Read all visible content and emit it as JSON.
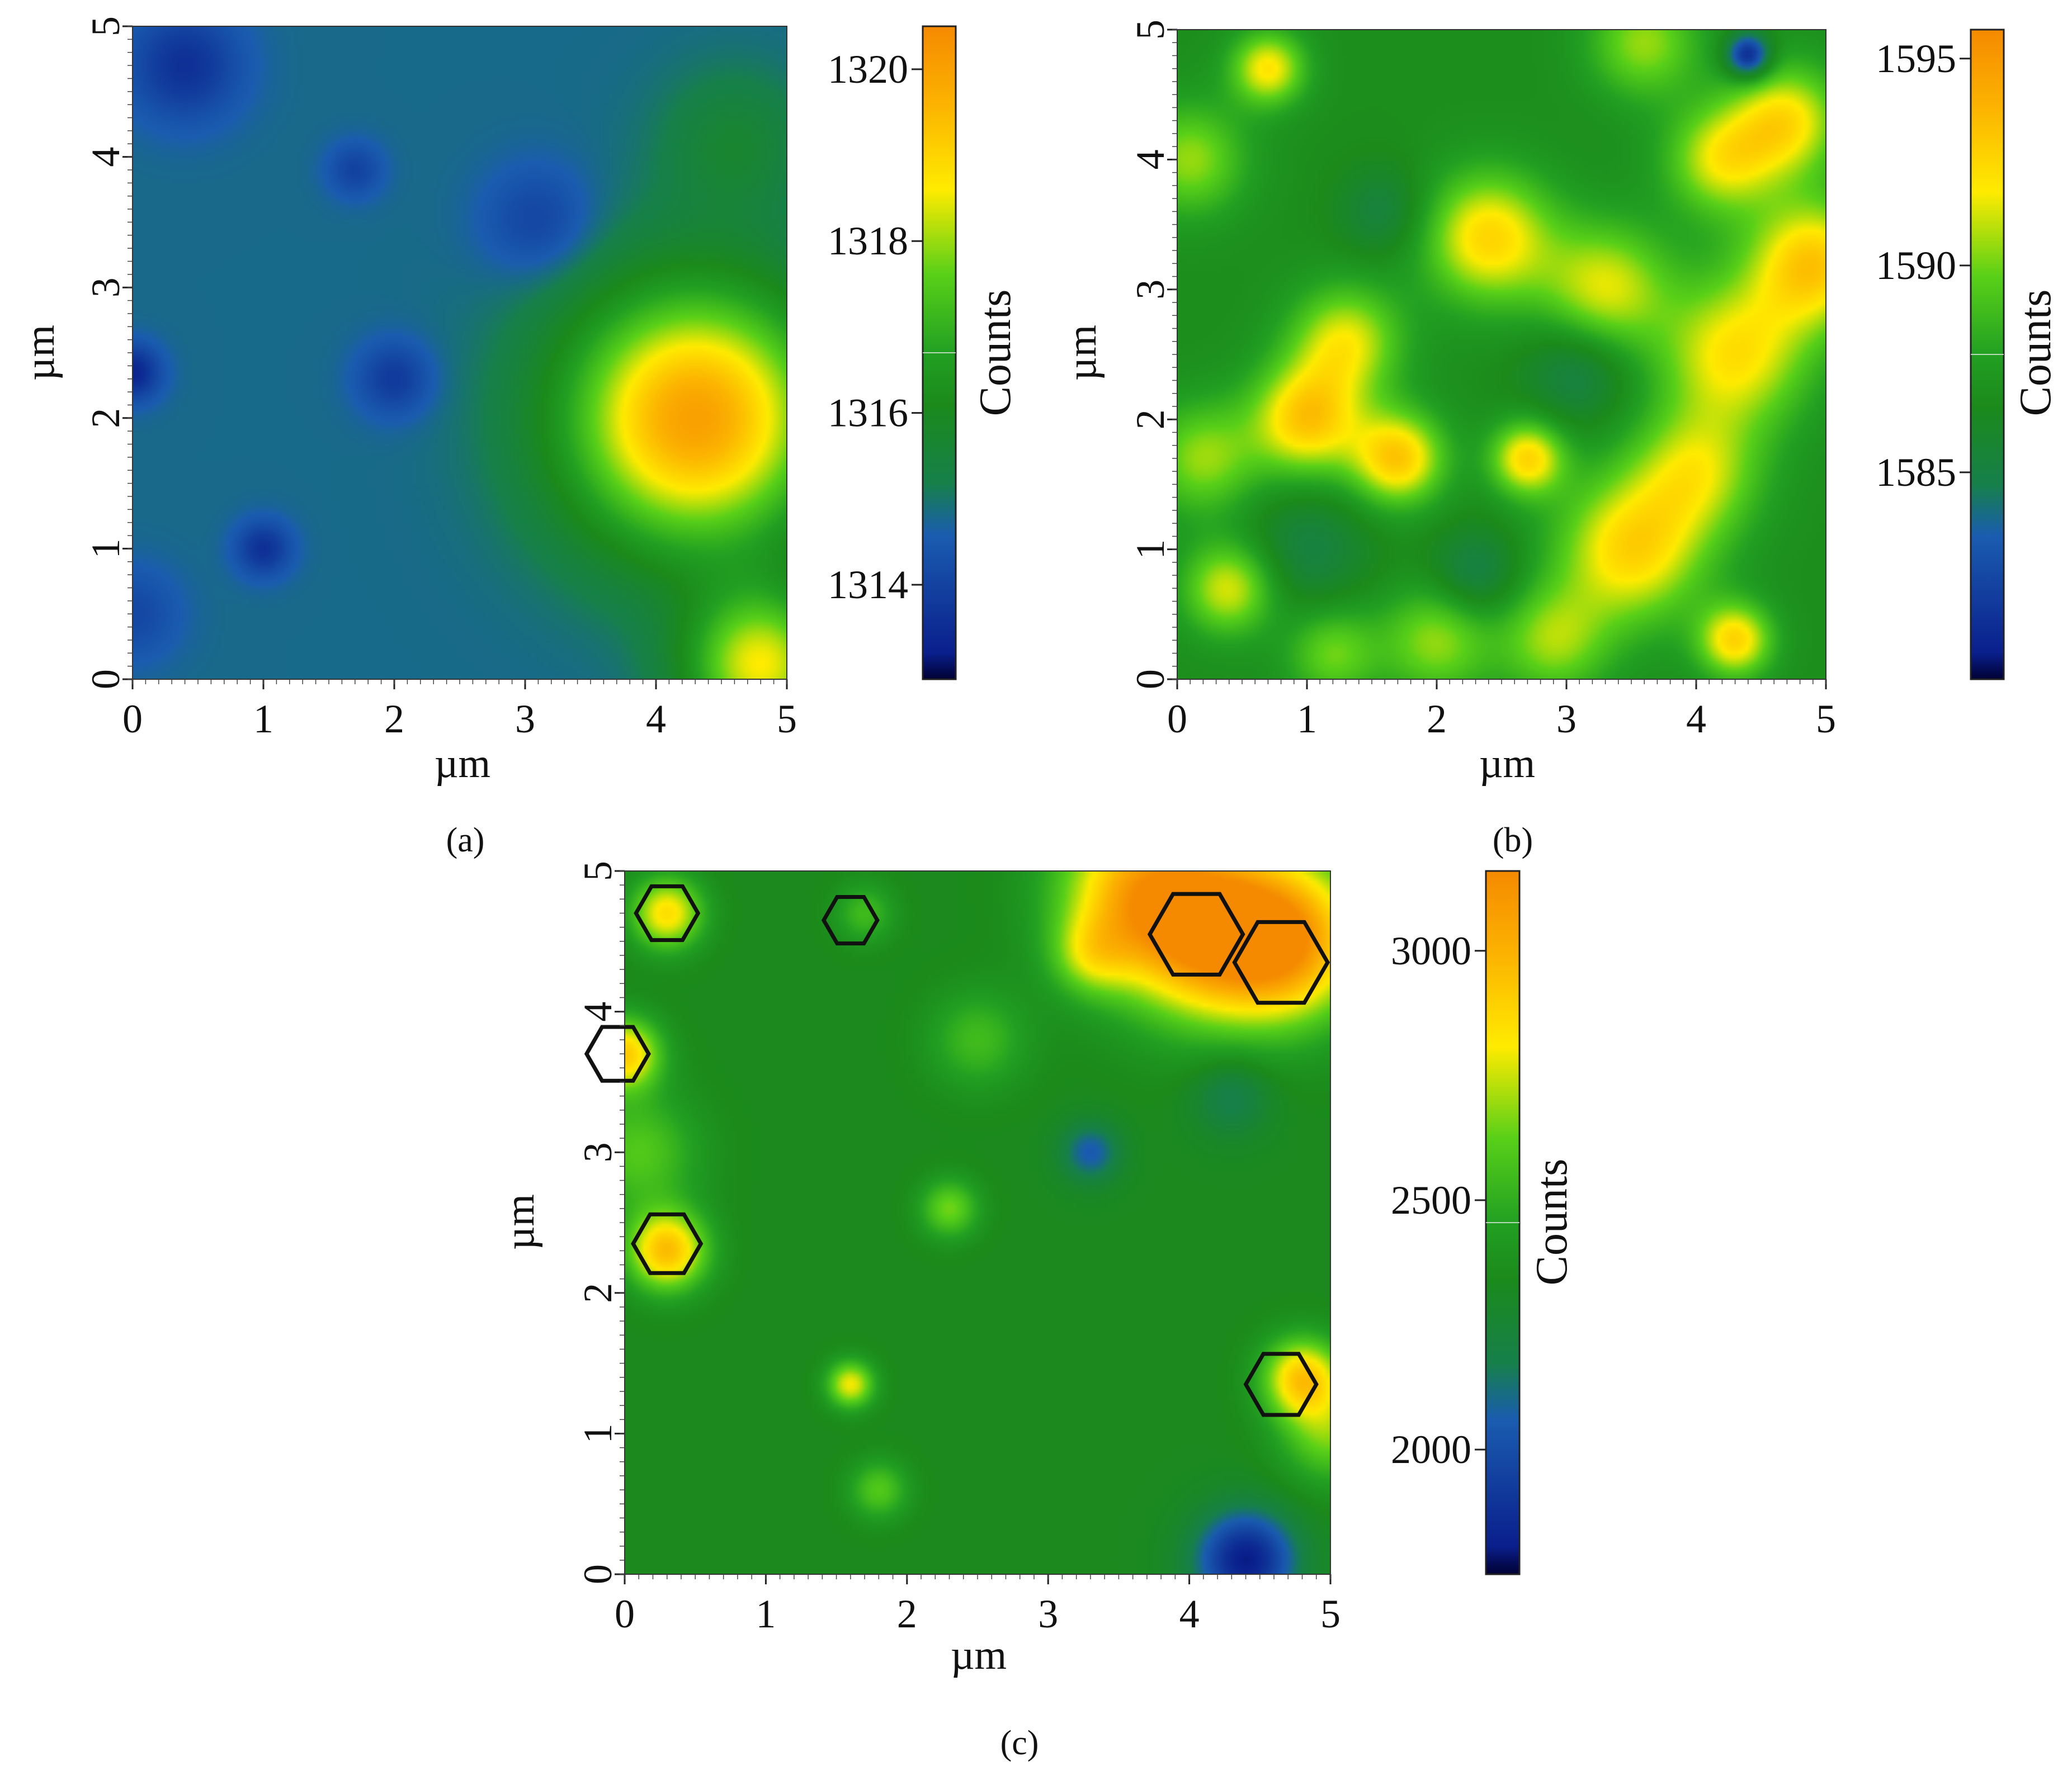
{
  "colors": {
    "low": "#0a1f8c",
    "mid": "#1b8a1b",
    "high": "#ffeb00",
    "peak": "#f58a00",
    "outline": "#111111"
  },
  "chart_data": [
    {
      "type": "heatmap",
      "panel_label": "(a)",
      "xlabel": "µm",
      "ylabel": "µm",
      "colorbar_label": "Counts",
      "xlim": [
        0,
        5
      ],
      "ylim": [
        0,
        5
      ],
      "x_ticks": [
        "0",
        "1",
        "2",
        "3",
        "4",
        "5"
      ],
      "y_ticks": [
        "0",
        "1",
        "2",
        "3",
        "4",
        "5"
      ],
      "colorbar_range": [
        1312.9,
        1320.5
      ],
      "colorbar_ticks": [
        {
          "value": 1314,
          "label": "1314"
        },
        {
          "value": 1316,
          "label": "1316"
        },
        {
          "value": 1318,
          "label": "1318"
        },
        {
          "value": 1320,
          "label": "1320"
        }
      ],
      "base_value": 1314.8,
      "features": [
        {
          "x": 4.3,
          "y": 2.0,
          "value": 1320.0,
          "spread": 0.7
        },
        {
          "x": 4.8,
          "y": 0.1,
          "value": 1318.5,
          "spread": 0.4
        },
        {
          "x": 4.6,
          "y": 4.1,
          "value": 1315.6,
          "spread": 0.4
        },
        {
          "x": 0.4,
          "y": 4.7,
          "value": 1313.6,
          "spread": 0.3
        },
        {
          "x": 0.0,
          "y": 2.35,
          "value": 1313.3,
          "spread": 0.15
        },
        {
          "x": 1.0,
          "y": 1.0,
          "value": 1313.6,
          "spread": 0.15
        },
        {
          "x": 2.0,
          "y": 2.3,
          "value": 1313.8,
          "spread": 0.2
        },
        {
          "x": 3.1,
          "y": 3.5,
          "value": 1314.0,
          "spread": 0.3
        },
        {
          "x": 1.7,
          "y": 3.9,
          "value": 1314.0,
          "spread": 0.15
        },
        {
          "x": 0.0,
          "y": 0.5,
          "value": 1314.1,
          "spread": 0.25
        }
      ]
    },
    {
      "type": "heatmap",
      "panel_label": "(b)",
      "xlabel": "µm",
      "ylabel": "µm",
      "colorbar_label": "Counts",
      "xlim": [
        0,
        5
      ],
      "ylim": [
        0,
        5
      ],
      "x_ticks": [
        "0",
        "1",
        "2",
        "3",
        "4",
        "5"
      ],
      "y_ticks": [
        "0",
        "1",
        "2",
        "3",
        "4",
        "5"
      ],
      "colorbar_range": [
        1580.0,
        1595.7
      ],
      "colorbar_ticks": [
        {
          "value": 1585,
          "label": "1585"
        },
        {
          "value": 1590,
          "label": "1590"
        },
        {
          "value": 1595,
          "label": "1595"
        }
      ],
      "base_value": 1586.8,
      "features": [
        {
          "x": 0.7,
          "y": 4.7,
          "value": 1592.0,
          "spread": 0.2
        },
        {
          "x": 1.0,
          "y": 2.0,
          "value": 1593.0,
          "spread": 0.3
        },
        {
          "x": 1.3,
          "y": 2.6,
          "value": 1591.5,
          "spread": 0.3
        },
        {
          "x": 1.7,
          "y": 1.7,
          "value": 1593.0,
          "spread": 0.25
        },
        {
          "x": 2.4,
          "y": 3.4,
          "value": 1592.5,
          "spread": 0.35
        },
        {
          "x": 2.7,
          "y": 1.7,
          "value": 1592.5,
          "spread": 0.2
        },
        {
          "x": 3.3,
          "y": 3.0,
          "value": 1591.5,
          "spread": 0.35
        },
        {
          "x": 3.5,
          "y": 1.0,
          "value": 1592.5,
          "spread": 0.4
        },
        {
          "x": 4.0,
          "y": 1.6,
          "value": 1591.0,
          "spread": 0.35
        },
        {
          "x": 4.3,
          "y": 2.5,
          "value": 1592.0,
          "spread": 0.4
        },
        {
          "x": 4.2,
          "y": 4.0,
          "value": 1591.5,
          "spread": 0.3
        },
        {
          "x": 4.7,
          "y": 4.3,
          "value": 1592.0,
          "spread": 0.3
        },
        {
          "x": 4.9,
          "y": 3.2,
          "value": 1593.0,
          "spread": 0.35
        },
        {
          "x": 4.3,
          "y": 0.3,
          "value": 1592.5,
          "spread": 0.2
        },
        {
          "x": 0.4,
          "y": 0.7,
          "value": 1591.5,
          "spread": 0.25
        },
        {
          "x": 0.2,
          "y": 1.7,
          "value": 1590.5,
          "spread": 0.3
        },
        {
          "x": 0.1,
          "y": 4.0,
          "value": 1590.5,
          "spread": 0.3
        },
        {
          "x": 3.6,
          "y": 4.9,
          "value": 1590.5,
          "spread": 0.3
        },
        {
          "x": 2.0,
          "y": 0.3,
          "value": 1590.5,
          "spread": 0.3
        },
        {
          "x": 2.9,
          "y": 0.3,
          "value": 1590.5,
          "spread": 0.3
        },
        {
          "x": 1.2,
          "y": 0.2,
          "value": 1590.0,
          "spread": 0.25
        },
        {
          "x": 4.4,
          "y": 4.8,
          "value": 1580.5,
          "spread": 0.12
        },
        {
          "x": 3.1,
          "y": 2.4,
          "value": 1584.5,
          "spread": 0.3
        },
        {
          "x": 2.3,
          "y": 0.8,
          "value": 1584.5,
          "spread": 0.25
        },
        {
          "x": 1.0,
          "y": 1.0,
          "value": 1585.0,
          "spread": 0.35
        },
        {
          "x": 1.6,
          "y": 3.6,
          "value": 1585.0,
          "spread": 0.25
        }
      ]
    },
    {
      "type": "heatmap",
      "panel_label": "(c)",
      "xlabel": "µm",
      "ylabel": "µm",
      "colorbar_label": "Counts",
      "xlim": [
        0,
        5
      ],
      "ylim": [
        0,
        5
      ],
      "x_ticks": [
        "0",
        "1",
        "2",
        "3",
        "4",
        "5"
      ],
      "y_ticks": [
        "0",
        "1",
        "2",
        "3",
        "4",
        "5"
      ],
      "colorbar_range": [
        1750,
        3160
      ],
      "colorbar_ticks": [
        {
          "value": 2000,
          "label": "2000"
        },
        {
          "value": 2500,
          "label": "2500"
        },
        {
          "value": 3000,
          "label": "3000"
        }
      ],
      "base_value": 2330,
      "features": [
        {
          "x": 4.1,
          "y": 4.6,
          "value": 3050,
          "spread": 0.45
        },
        {
          "x": 4.7,
          "y": 4.5,
          "value": 3000,
          "spread": 0.4
        },
        {
          "x": 3.6,
          "y": 4.9,
          "value": 2800,
          "spread": 0.4
        },
        {
          "x": 0.3,
          "y": 4.7,
          "value": 2850,
          "spread": 0.18
        },
        {
          "x": 0.0,
          "y": 3.7,
          "value": 2900,
          "spread": 0.18
        },
        {
          "x": 0.3,
          "y": 2.3,
          "value": 2950,
          "spread": 0.2
        },
        {
          "x": 0.1,
          "y": 3.0,
          "value": 2600,
          "spread": 0.3
        },
        {
          "x": 4.8,
          "y": 1.4,
          "value": 2900,
          "spread": 0.2
        },
        {
          "x": 5.0,
          "y": 1.0,
          "value": 2650,
          "spread": 0.25
        },
        {
          "x": 1.6,
          "y": 1.35,
          "value": 2800,
          "spread": 0.12
        },
        {
          "x": 1.7,
          "y": 4.7,
          "value": 2550,
          "spread": 0.15
        },
        {
          "x": 2.3,
          "y": 2.6,
          "value": 2650,
          "spread": 0.15
        },
        {
          "x": 2.5,
          "y": 3.8,
          "value": 2550,
          "spread": 0.25
        },
        {
          "x": 3.3,
          "y": 4.4,
          "value": 2600,
          "spread": 0.2
        },
        {
          "x": 1.8,
          "y": 0.6,
          "value": 2600,
          "spread": 0.15
        },
        {
          "x": 4.4,
          "y": 0.1,
          "value": 1800,
          "spread": 0.25
        },
        {
          "x": 3.3,
          "y": 3.0,
          "value": 2050,
          "spread": 0.15
        },
        {
          "x": 4.3,
          "y": 3.4,
          "value": 2150,
          "spread": 0.2
        }
      ],
      "highlighted_regions": [
        {
          "x": 0.3,
          "y": 4.7,
          "r": 0.22
        },
        {
          "x": 1.6,
          "y": 4.65,
          "r": 0.19
        },
        {
          "x": 4.05,
          "y": 4.55,
          "r": 0.33
        },
        {
          "x": 4.65,
          "y": 4.35,
          "r": 0.33
        },
        {
          "x": -0.05,
          "y": 3.7,
          "r": 0.22
        },
        {
          "x": 0.3,
          "y": 2.35,
          "r": 0.24
        },
        {
          "x": 4.65,
          "y": 1.35,
          "r": 0.25
        }
      ]
    }
  ]
}
